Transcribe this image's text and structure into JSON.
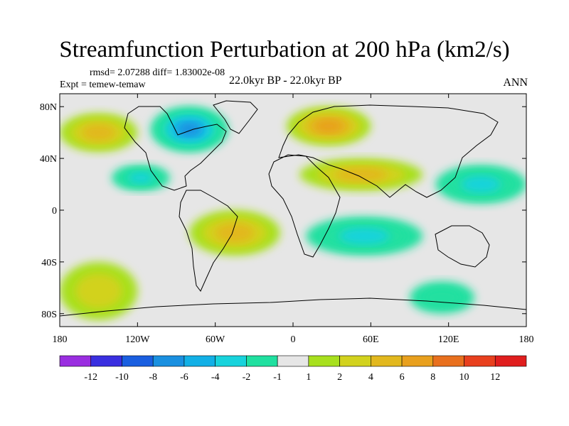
{
  "chart_data": {
    "type": "heatmap",
    "title": "Streamfunction Perturbation at 200 hPa (km2/s)",
    "stats_text": "rmsd= 2.07288 diff= 1.83002e-08",
    "left_label": "Expt = temew-temaw",
    "center_label": "22.0kyr BP - 22.0kyr BP",
    "right_label": "ANN",
    "x_ticks": [
      "180",
      "120W",
      "60W",
      "0",
      "60E",
      "120E",
      "180"
    ],
    "y_ticks": [
      "80N",
      "40N",
      "0",
      "40S",
      "80S"
    ],
    "lon_range": [
      -180,
      180
    ],
    "lat_range": [
      -90,
      90
    ],
    "colorbar_labels": [
      "-12",
      "-10",
      "-8",
      "-6",
      "-4",
      "-2",
      "-1",
      "1",
      "2",
      "4",
      "6",
      "8",
      "10",
      "12"
    ],
    "colorbar_colors": [
      "#9a2ee0",
      "#3a2fe0",
      "#1a5fe0",
      "#1a90e0",
      "#12b0e6",
      "#18d3dc",
      "#20e0a0",
      "#e6e6e6",
      "#a8e01e",
      "#d2d21e",
      "#e2b81e",
      "#e8a01e",
      "#e8701e",
      "#e8401e",
      "#e01e1e"
    ],
    "anomaly_regions": [
      {
        "name": "north-america-low",
        "lon": [
          -110,
          -50
        ],
        "lat": [
          45,
          80
        ],
        "value": -8
      },
      {
        "name": "north-atlantic-pacific-low",
        "lon": [
          -140,
          -95
        ],
        "lat": [
          15,
          35
        ],
        "value": -4
      },
      {
        "name": "europe-high",
        "lon": [
          -5,
          60
        ],
        "lat": [
          50,
          80
        ],
        "value": 6
      },
      {
        "name": "north-pacific-west-high",
        "lon": [
          -180,
          -120
        ],
        "lat": [
          45,
          75
        ],
        "value": 4
      },
      {
        "name": "asia-subtropical-high",
        "lon": [
          5,
          100
        ],
        "lat": [
          15,
          40
        ],
        "value": 4
      },
      {
        "name": "south-atlantic-high",
        "lon": [
          -80,
          -10
        ],
        "lat": [
          -35,
          0
        ],
        "value": 4
      },
      {
        "name": "indian-ocean-low",
        "lon": [
          10,
          100
        ],
        "lat": [
          -35,
          -5
        ],
        "value": -4
      },
      {
        "name": "west-pacific-low",
        "lon": [
          110,
          180
        ],
        "lat": [
          5,
          35
        ],
        "value": -4
      },
      {
        "name": "southern-ocean-low",
        "lon": [
          90,
          140
        ],
        "lat": [
          -80,
          -55
        ],
        "value": -2
      },
      {
        "name": "south-pacific-high",
        "lon": [
          -180,
          -120
        ],
        "lat": [
          -85,
          -40
        ],
        "value": 2
      }
    ]
  }
}
